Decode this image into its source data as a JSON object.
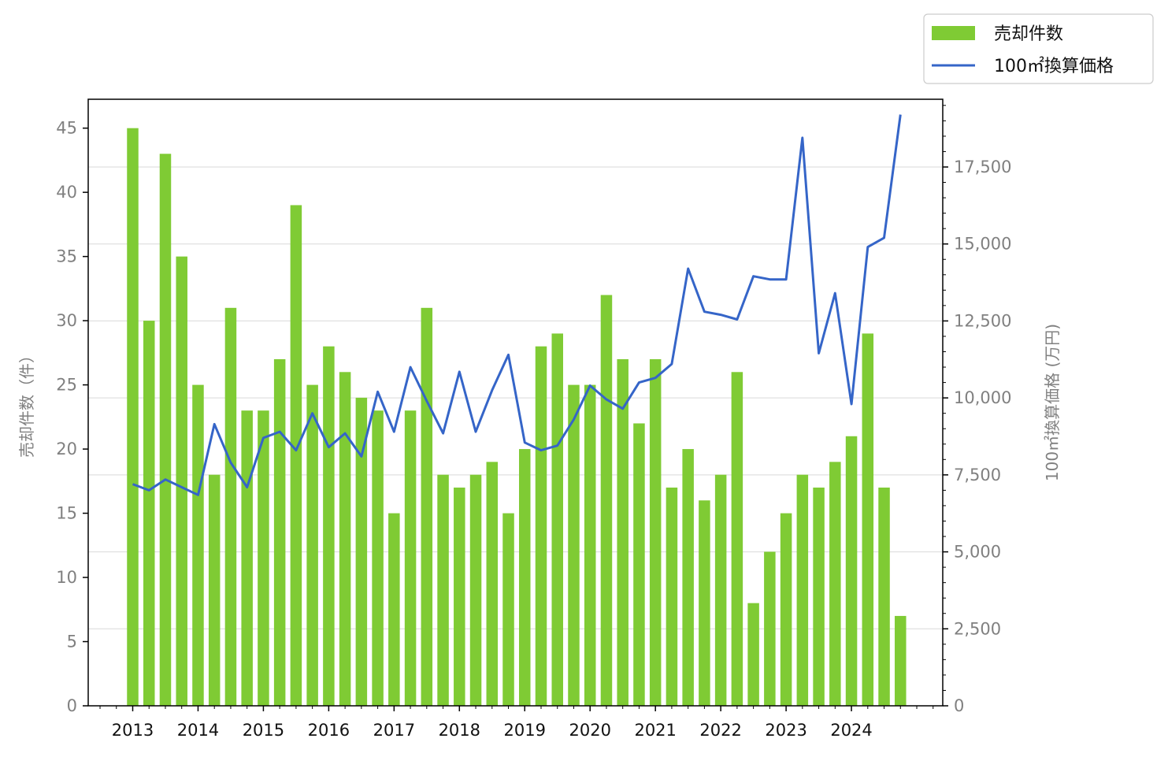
{
  "chart_data": {
    "type": "bar+line",
    "colors": {
      "bar": "#7fcb34",
      "line": "#3565c8",
      "grid": "#d9d9d9"
    },
    "x_ticks": [
      "2013",
      "2014",
      "2015",
      "2016",
      "2017",
      "2018",
      "2019",
      "2020",
      "2021",
      "2022",
      "2023",
      "2024"
    ],
    "series": [
      {
        "name": "売却件数",
        "axis": "left",
        "kind": "bar",
        "values": [
          45,
          30,
          43,
          35,
          25,
          18,
          31,
          23,
          23,
          27,
          39,
          25,
          28,
          26,
          24,
          23,
          15,
          23,
          31,
          18,
          17,
          18,
          19,
          15,
          20,
          28,
          29,
          25,
          25,
          32,
          27,
          22,
          27,
          17,
          20,
          16,
          18,
          26,
          8,
          12,
          15,
          18,
          17,
          19,
          21,
          29,
          17,
          7
        ]
      },
      {
        "name": "100㎡換算価格",
        "axis": "right",
        "kind": "line",
        "values": [
          7200,
          7000,
          7350,
          7100,
          6850,
          9150,
          7900,
          7100,
          8700,
          8900,
          8300,
          9500,
          8400,
          8850,
          8100,
          10200,
          8900,
          11000,
          9900,
          8850,
          10850,
          8900,
          10250,
          11400,
          8550,
          8300,
          8450,
          9300,
          10400,
          9950,
          9650,
          10500,
          10650,
          11100,
          14200,
          12800,
          12700,
          12550,
          13950,
          13850,
          13850,
          18450,
          11450,
          13400,
          9800,
          14900,
          15200,
          19200
        ]
      }
    ],
    "left_axis": {
      "label": "売却件数（件）",
      "ylim": [
        0,
        47.25
      ],
      "ticks": [
        0,
        5,
        10,
        15,
        20,
        25,
        30,
        35,
        40,
        45
      ],
      "tick_labels": [
        "0",
        "5",
        "10",
        "15",
        "20",
        "25",
        "30",
        "35",
        "40",
        "45"
      ]
    },
    "right_axis": {
      "label": "100㎡換算価格 (万円)",
      "ylim": [
        0,
        19700
      ],
      "ticks": [
        0,
        2500,
        5000,
        7500,
        10000,
        12500,
        15000,
        17500
      ],
      "tick_labels": [
        "0",
        "2,500",
        "5,000",
        "7,500",
        "10,000",
        "12,500",
        "15,000",
        "17,500"
      ]
    },
    "grid": true,
    "legend_position": "top-right"
  }
}
